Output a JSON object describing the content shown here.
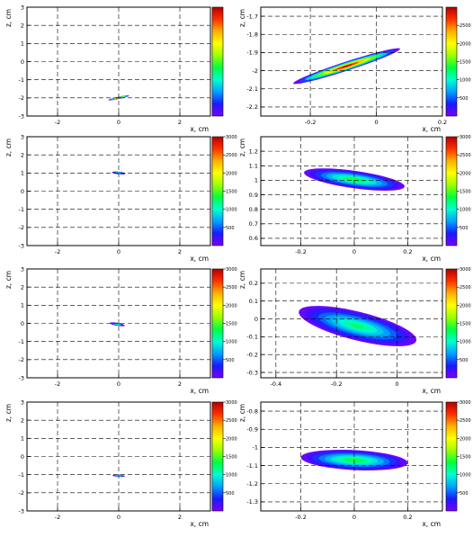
{
  "colorbar_stops": [
    "#7a00ff",
    "#1a1aff",
    "#00a0ff",
    "#00ffd0",
    "#00ff40",
    "#9cff00",
    "#ffff00",
    "#ffb000",
    "#ff3000",
    "#b40000"
  ],
  "chart_data": [
    {
      "type": "heatmap",
      "xlabel": "x, cm",
      "ylabel": "z, cm",
      "xlim": [
        -3,
        3
      ],
      "ylim": [
        -3,
        3
      ],
      "xticks": [
        -2,
        0,
        2
      ],
      "yticks": [
        -3,
        -2,
        -1,
        0,
        1,
        2,
        3
      ],
      "zlim": [
        0,
        3000
      ],
      "zticks": [],
      "grid": true,
      "blobs": [
        {
          "cx": 0.0,
          "cz": -2.0,
          "sx": 0.35,
          "sz": 0.05,
          "angle": 12,
          "peak": 1.0
        }
      ]
    },
    {
      "type": "heatmap",
      "xlabel": "x, cm",
      "ylabel": "z, cm",
      "xlim": [
        -0.35,
        0.2
      ],
      "ylim": [
        -2.25,
        -1.65
      ],
      "xticks": [
        -0.2,
        0,
        0.2
      ],
      "yticks": [
        -2.2,
        -2.1,
        -2,
        -1.9,
        -1.8,
        -1.7
      ],
      "zlim": [
        0,
        3000
      ],
      "zticks": [
        500,
        1000,
        1500,
        2000,
        2500
      ],
      "grid": true,
      "blobs": [
        {
          "cx": -0.09,
          "cz": -1.975,
          "sx": 0.17,
          "sz": 0.025,
          "angle": 18,
          "peak": 1.0
        }
      ]
    },
    {
      "type": "heatmap",
      "xlabel": "x, cm",
      "ylabel": "z, cm",
      "xlim": [
        -3,
        3
      ],
      "ylim": [
        -3,
        3
      ],
      "xticks": [
        -2,
        0,
        2
      ],
      "yticks": [
        -3,
        -2,
        -1,
        0,
        1,
        2,
        3
      ],
      "zlim": [
        0,
        3000
      ],
      "zticks": [
        500,
        1000,
        1500,
        2000,
        2500,
        3000
      ],
      "grid": true,
      "blobs": [
        {
          "cx": 0.0,
          "cz": 1.0,
          "sx": 0.22,
          "sz": 0.07,
          "angle": -6,
          "peak": 0.45
        }
      ]
    },
    {
      "type": "heatmap",
      "xlabel": "x, cm",
      "ylabel": "z, cm",
      "xlim": [
        -0.35,
        0.33
      ],
      "ylim": [
        0.55,
        1.3
      ],
      "xticks": [
        -0.2,
        0,
        0.2
      ],
      "yticks": [
        0.6,
        0.7,
        0.8,
        0.9,
        1,
        1.1,
        1.2
      ],
      "zlim": [
        0,
        3000
      ],
      "zticks": [
        500,
        1000,
        1500,
        2000,
        2500,
        3000
      ],
      "grid": true,
      "blobs": [
        {
          "cx": 0.0,
          "cz": 1.005,
          "sx": 0.19,
          "sz": 0.06,
          "angle": -8,
          "peak": 0.45
        }
      ]
    },
    {
      "type": "heatmap",
      "xlabel": "x, cm",
      "ylabel": "z, cm",
      "xlim": [
        -3,
        3
      ],
      "ylim": [
        -3,
        3
      ],
      "xticks": [
        -2,
        0,
        2
      ],
      "yticks": [
        -3,
        -2,
        -1,
        0,
        1,
        2,
        3
      ],
      "zlim": [
        0,
        3000
      ],
      "zticks": [
        500,
        1000,
        1500,
        2000,
        2500,
        3000
      ],
      "grid": true,
      "blobs": [
        {
          "cx": -0.05,
          "cz": -0.05,
          "sx": 0.25,
          "sz": 0.08,
          "angle": -10,
          "peak": 0.4
        }
      ]
    },
    {
      "type": "heatmap",
      "xlabel": "x, cm",
      "ylabel": "z, cm",
      "xlim": [
        -0.45,
        0.15
      ],
      "ylim": [
        -0.33,
        0.28
      ],
      "xticks": [
        -0.4,
        -0.2,
        0
      ],
      "yticks": [
        -0.3,
        -0.2,
        -0.1,
        0,
        0.1,
        0.2
      ],
      "zlim": [
        0,
        3000
      ],
      "zticks": [
        500,
        1000,
        1500,
        2000,
        2500,
        3000
      ],
      "grid": true,
      "blobs": [
        {
          "cx": -0.13,
          "cz": -0.04,
          "sx": 0.2,
          "sz": 0.08,
          "angle": -14,
          "peak": 0.4
        }
      ]
    },
    {
      "type": "heatmap",
      "xlabel": "x, cm",
      "ylabel": "z, cm",
      "xlim": [
        -3,
        3
      ],
      "ylim": [
        -3,
        3
      ],
      "xticks": [
        -2,
        0,
        2
      ],
      "yticks": [
        -3,
        -2,
        -1,
        0,
        1,
        2,
        3
      ],
      "zlim": [
        0,
        3000
      ],
      "zticks": [
        500,
        1000,
        1500,
        2000,
        2500,
        3000
      ],
      "grid": true,
      "blobs": [
        {
          "cx": 0.0,
          "cz": -1.06,
          "sx": 0.2,
          "sz": 0.05,
          "angle": -4,
          "peak": 0.45
        }
      ]
    },
    {
      "type": "heatmap",
      "xlabel": "x, cm",
      "ylabel": "z, cm",
      "xlim": [
        -0.35,
        0.33
      ],
      "ylim": [
        -1.35,
        -0.75
      ],
      "xticks": [
        -0.2,
        0,
        0.2
      ],
      "yticks": [
        -1.3,
        -1.2,
        -1.1,
        -1,
        -0.9,
        -0.8
      ],
      "zlim": [
        0,
        3000
      ],
      "zticks": [
        500,
        1000,
        1500,
        2000,
        2500,
        3000
      ],
      "grid": true,
      "blobs": [
        {
          "cx": 0.0,
          "cz": -1.07,
          "sx": 0.2,
          "sz": 0.055,
          "angle": -3,
          "peak": 0.45
        }
      ]
    }
  ]
}
